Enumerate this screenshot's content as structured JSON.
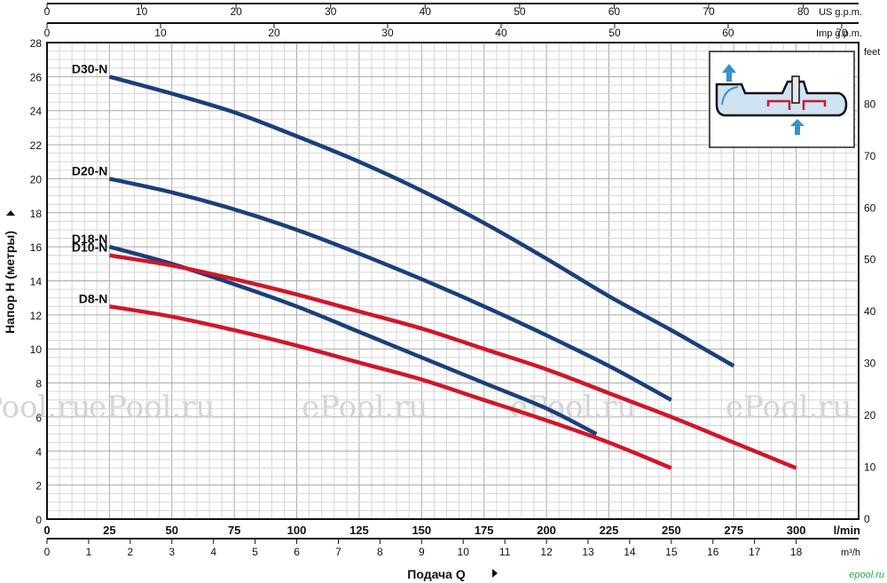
{
  "chart_data": {
    "type": "line",
    "title": "",
    "xlabel": "Подача Q",
    "ylabel": "Напор H (метры)",
    "x_unit": "l/min",
    "xlim": [
      0,
      325
    ],
    "ylim": [
      0,
      28
    ],
    "x_ticks": [
      0,
      25,
      50,
      75,
      100,
      125,
      150,
      175,
      200,
      225,
      250,
      275,
      300
    ],
    "y_ticks": [
      0,
      2,
      4,
      6,
      8,
      10,
      12,
      14,
      16,
      18,
      20,
      22,
      24,
      26,
      28
    ],
    "secondary_axes": {
      "top_us_gpm": {
        "unit": "US g.p.m.",
        "ticks": [
          0,
          10,
          20,
          30,
          40,
          50,
          60,
          70,
          80
        ]
      },
      "top_imp_gpm": {
        "unit": "Imp g.p.m.",
        "ticks": [
          0,
          10,
          20,
          30,
          40,
          50,
          60,
          70
        ]
      },
      "bottom_m3h": {
        "unit": "m³/h",
        "ticks": [
          0,
          1,
          2,
          3,
          4,
          5,
          6,
          7,
          8,
          9,
          10,
          11,
          12,
          13,
          14,
          15,
          16,
          17,
          18
        ]
      },
      "right_feet": {
        "unit": "feet",
        "ticks": [
          0,
          10,
          20,
          30,
          40,
          50,
          60,
          70,
          80
        ]
      }
    },
    "grid": true,
    "series": [
      {
        "name": "D30-N",
        "color": "#1b3f7a",
        "x": [
          25,
          50,
          75,
          100,
          125,
          150,
          175,
          200,
          225,
          250,
          275
        ],
        "y": [
          26.0,
          25.0,
          23.9,
          22.5,
          21.0,
          19.3,
          17.4,
          15.3,
          13.1,
          11.1,
          9.0
        ]
      },
      {
        "name": "D20-N",
        "color": "#1b3f7a",
        "x": [
          25,
          50,
          75,
          100,
          125,
          150,
          175,
          200,
          225,
          250
        ],
        "y": [
          20.0,
          19.2,
          18.2,
          17.0,
          15.6,
          14.1,
          12.5,
          10.8,
          9.0,
          7.0
        ]
      },
      {
        "name": "D18-N",
        "color": "#1b3f7a",
        "x": [
          25,
          50,
          75,
          100,
          125,
          150,
          175,
          200,
          220
        ],
        "y": [
          16.0,
          15.0,
          13.8,
          12.5,
          11.0,
          9.5,
          8.0,
          6.5,
          5.0
        ]
      },
      {
        "name": "D10-N",
        "color": "#d0162a",
        "x": [
          25,
          50,
          75,
          100,
          125,
          150,
          175,
          200,
          225,
          250,
          275,
          300
        ],
        "y": [
          15.5,
          14.9,
          14.1,
          13.2,
          12.2,
          11.2,
          10.0,
          8.8,
          7.4,
          6.0,
          4.5,
          3.0
        ]
      },
      {
        "name": "D8-N",
        "color": "#d0162a",
        "x": [
          25,
          50,
          75,
          100,
          125,
          150,
          175,
          200,
          225,
          250
        ],
        "y": [
          12.5,
          11.9,
          11.1,
          10.2,
          9.2,
          8.2,
          7.0,
          5.8,
          4.5,
          3.0
        ]
      }
    ]
  },
  "watermark": "ePool.ru",
  "brand_mark": "epool.ru"
}
